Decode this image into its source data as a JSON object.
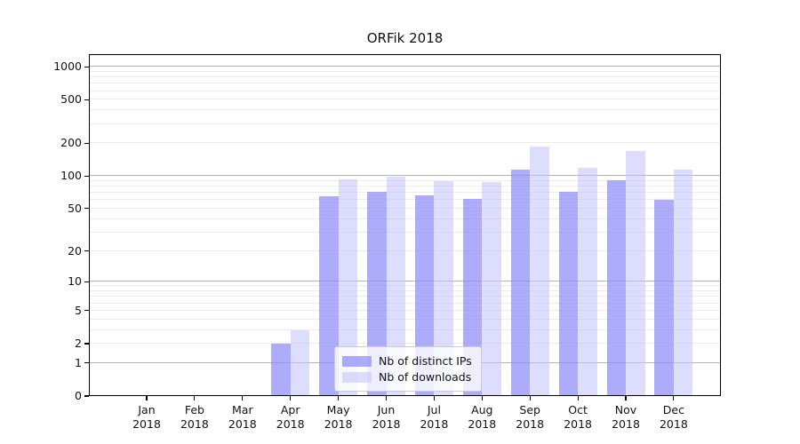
{
  "title": "ORFik 2018",
  "legend": {
    "items": [
      {
        "key": "ips",
        "label": "Nb of distinct IPs",
        "color": "#ababfa"
      },
      {
        "key": "downloads",
        "label": "Nb of downloads",
        "color": "#dedefc"
      }
    ]
  },
  "x_axis": {
    "months": [
      {
        "month": "Jan",
        "year": "2018"
      },
      {
        "month": "Feb",
        "year": "2018"
      },
      {
        "month": "Mar",
        "year": "2018"
      },
      {
        "month": "Apr",
        "year": "2018"
      },
      {
        "month": "May",
        "year": "2018"
      },
      {
        "month": "Jun",
        "year": "2018"
      },
      {
        "month": "Jul",
        "year": "2018"
      },
      {
        "month": "Aug",
        "year": "2018"
      },
      {
        "month": "Sep",
        "year": "2018"
      },
      {
        "month": "Oct",
        "year": "2018"
      },
      {
        "month": "Nov",
        "year": "2018"
      },
      {
        "month": "Dec",
        "year": "2018"
      }
    ]
  },
  "y_axis": {
    "ticks": [
      0,
      1,
      2,
      5,
      10,
      20,
      50,
      100,
      200,
      500,
      1000
    ],
    "scale": "log1p",
    "major_gridlines": [
      1,
      10,
      100,
      1000
    ]
  },
  "chart_data": {
    "type": "bar",
    "title": "ORFik 2018",
    "categories": [
      "Jan 2018",
      "Feb 2018",
      "Mar 2018",
      "Apr 2018",
      "May 2018",
      "Jun 2018",
      "Jul 2018",
      "Aug 2018",
      "Sep 2018",
      "Oct 2018",
      "Nov 2018",
      "Dec 2018"
    ],
    "series": [
      {
        "name": "Nb of distinct IPs",
        "key": "ips",
        "values": [
          0,
          0,
          0,
          2,
          65,
          72,
          67,
          61,
          115,
          71,
          91,
          60
        ]
      },
      {
        "name": "Nb of downloads",
        "key": "downloads",
        "values": [
          0,
          0,
          0,
          3,
          94,
          98,
          90,
          88,
          188,
          118,
          170,
          115
        ]
      }
    ],
    "xlabel": "",
    "ylabel": "",
    "yscale": "log1p",
    "yticks": [
      0,
      1,
      2,
      5,
      10,
      20,
      50,
      100,
      200,
      500,
      1000
    ],
    "ylim": [
      0,
      1300
    ],
    "grid": true,
    "legend_position": "inside-bottom-center"
  },
  "colors": {
    "bar_ips": "#ababfa",
    "bar_downloads": "#dedefc",
    "gridline_major": "#b3b3b3",
    "gridline_minor": "#ececec",
    "frame": "#000000",
    "background": "#ffffff"
  }
}
